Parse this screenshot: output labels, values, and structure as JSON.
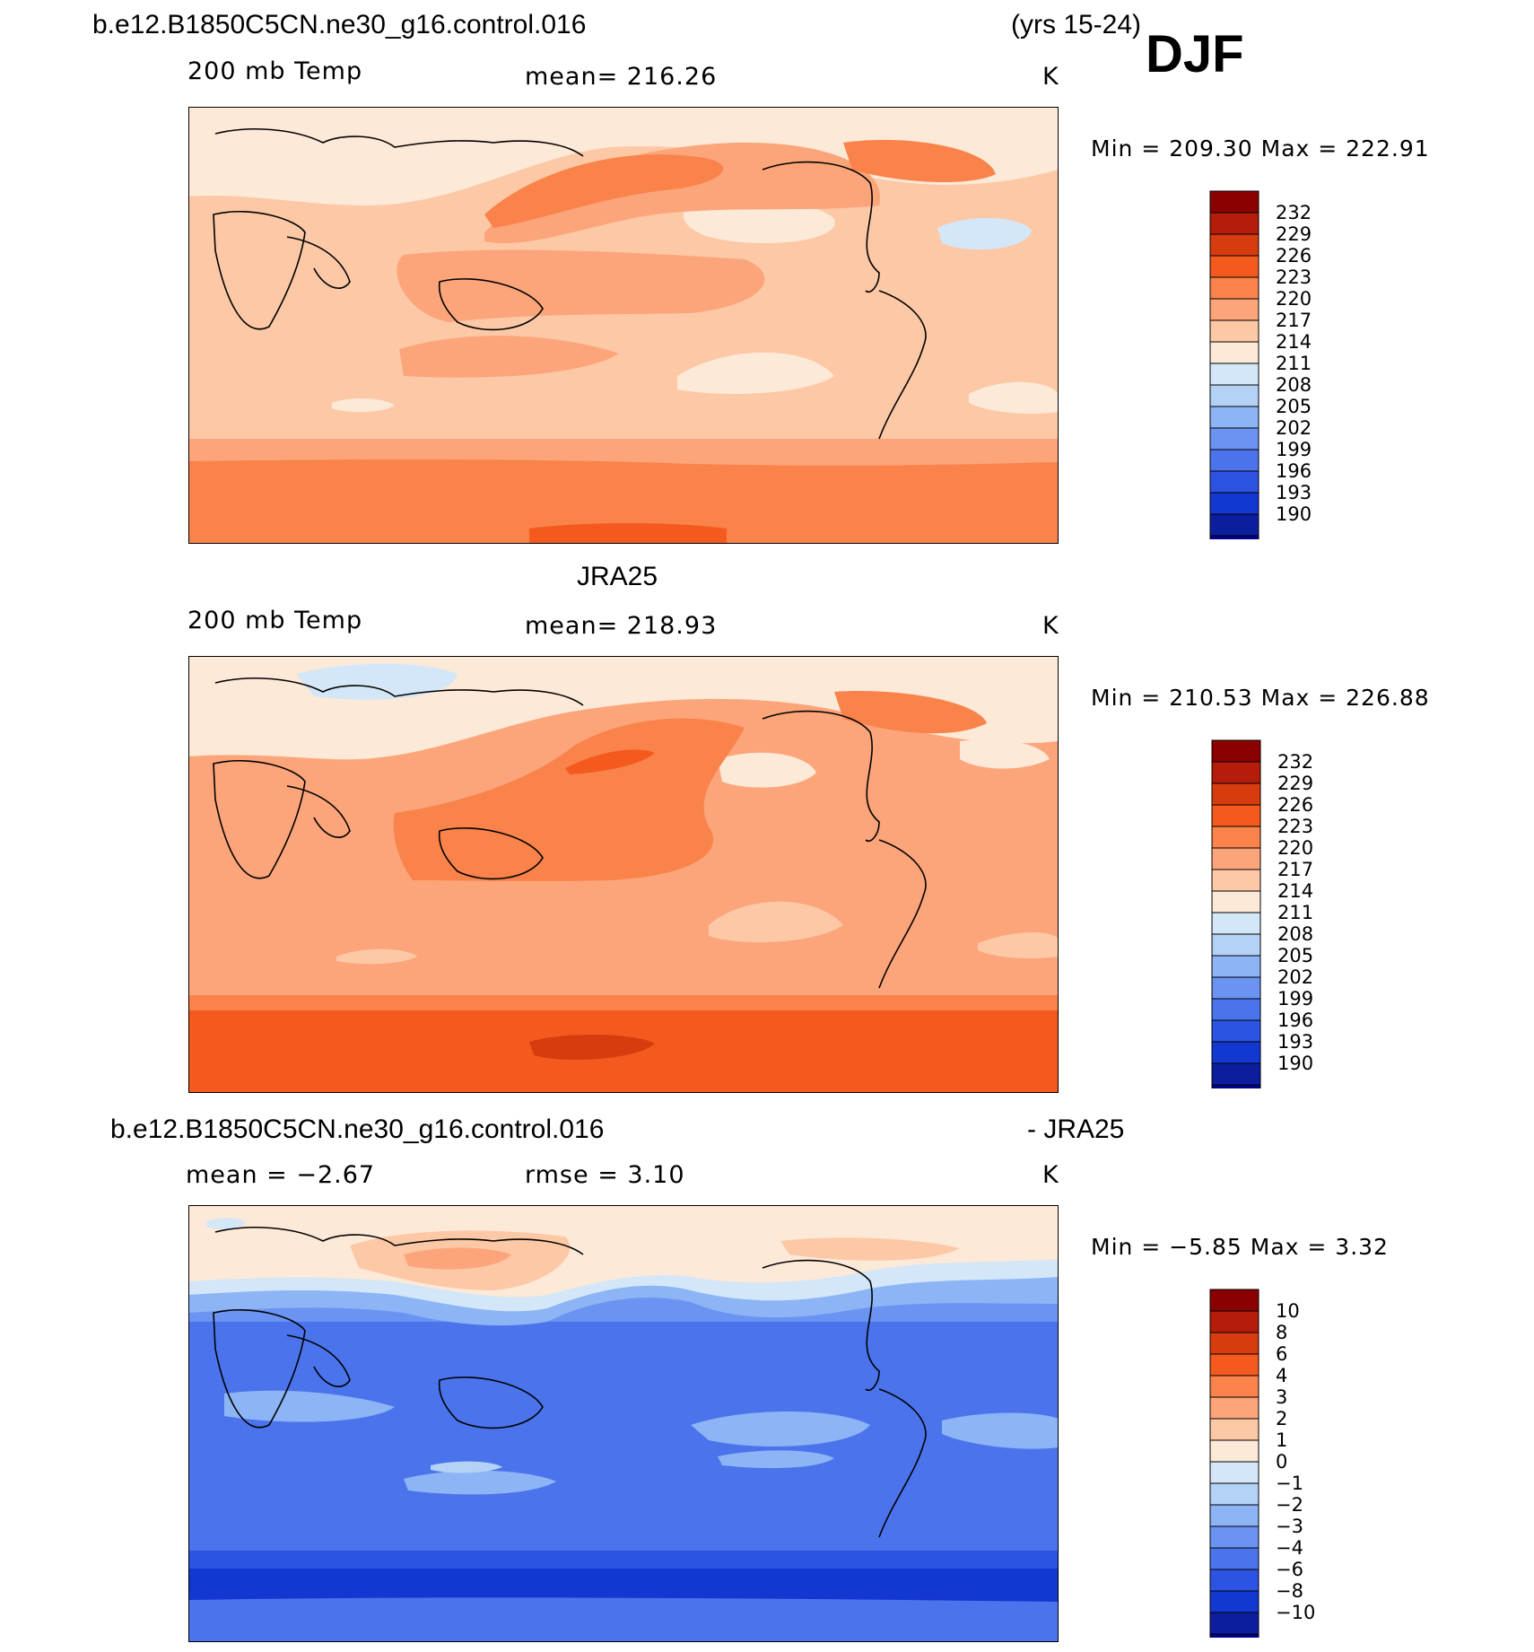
{
  "header": {
    "case_title": "b.e12.B1850C5CN.ne30_g16.control.016",
    "years": "(yrs 15-24)",
    "season": "DJF"
  },
  "colors": {
    "scale": [
      "#8b0000",
      "#b51c0a",
      "#d73c0e",
      "#f45a1e",
      "#f9834a",
      "#fca57a",
      "#fdc8a6",
      "#fde9d7",
      "#d4e7f8",
      "#b4d1f6",
      "#8db4f5",
      "#6b94f2",
      "#4b74ec",
      "#2c53e2",
      "#1337d1",
      "#0c1e9e",
      "#00008b"
    ],
    "neutral": "#fdc8a6"
  },
  "chart_data": [
    {
      "type": "contour-map",
      "id": "model",
      "title": "b.e12.B1850C5CN.ne30_g16.control.016",
      "field": "200 mb Temp",
      "mean_text": "mean= 216.26",
      "units": "K",
      "min_max_text": "Min = 209.30 Max = 222.91",
      "mean": 216.26,
      "min": 209.3,
      "max": 222.91,
      "colorbar_levels": [
        "232",
        "229",
        "226",
        "223",
        "220",
        "217",
        "214",
        "211",
        "208",
        "205",
        "202",
        "199",
        "196",
        "193",
        "190"
      ]
    },
    {
      "type": "contour-map",
      "id": "obs",
      "title": "JRA25",
      "field": "200 mb Temp",
      "mean_text": "mean= 218.93",
      "units": "K",
      "min_max_text": "Min = 210.53 Max = 226.88",
      "mean": 218.93,
      "min": 210.53,
      "max": 226.88,
      "colorbar_levels": [
        "232",
        "229",
        "226",
        "223",
        "220",
        "217",
        "214",
        "211",
        "208",
        "205",
        "202",
        "199",
        "196",
        "193",
        "190"
      ]
    },
    {
      "type": "contour-map",
      "id": "diff",
      "title": "b.e12.B1850C5CN.ne30_g16.control.016",
      "title_suffix": "- JRA25",
      "mean_text": "mean =   −2.67",
      "rmse_text": "rmse =    3.10",
      "units": "K",
      "min_max_text": "Min =   −5.85 Max =     3.32",
      "mean": -2.67,
      "rmse": 3.1,
      "min": -5.85,
      "max": 3.32,
      "colorbar_levels": [
        "10",
        "8",
        "6",
        "4",
        "3",
        "2",
        "1",
        "0",
        "−1",
        "−2",
        "−3",
        "−4",
        "−6",
        "−8",
        "−10"
      ]
    }
  ]
}
